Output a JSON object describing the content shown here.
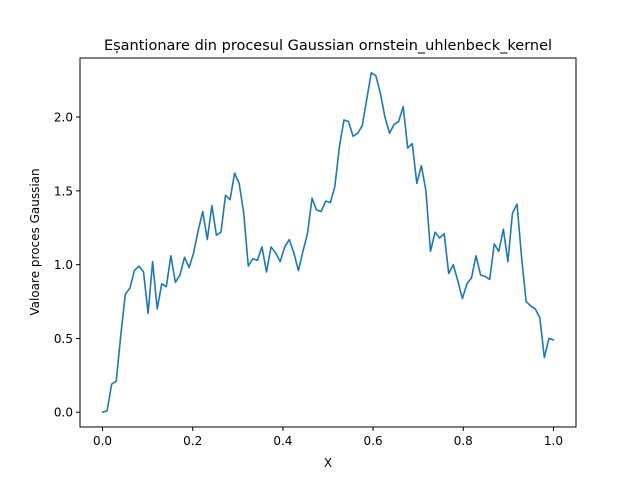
{
  "chart_data": {
    "type": "line",
    "title": "Eșantionare din procesul Gaussian ornstein_uhlenbeck_kernel",
    "xlabel": "X",
    "ylabel": "Valoare proces Gaussian",
    "xlim": [
      -0.05,
      1.05
    ],
    "ylim": [
      -0.1,
      2.4
    ],
    "xticks": [
      0.0,
      0.2,
      0.4,
      0.6,
      0.8,
      1.0
    ],
    "yticks": [
      0.0,
      0.5,
      1.0,
      1.5,
      2.0
    ],
    "xtick_labels": [
      "0.0",
      "0.2",
      "0.4",
      "0.6",
      "0.8",
      "1.0"
    ],
    "ytick_labels": [
      "0.0",
      "0.5",
      "1.0",
      "1.5",
      "2.0"
    ],
    "grid": false,
    "line_color": "#1f77b4",
    "series": [
      {
        "x": [
          0.0,
          0.0101,
          0.0202,
          0.0303,
          0.0404,
          0.0505,
          0.0606,
          0.0707,
          0.0808,
          0.0909,
          0.101,
          0.1111,
          0.1212,
          0.1313,
          0.1414,
          0.1515,
          0.1616,
          0.1717,
          0.1818,
          0.1919,
          0.202,
          0.2121,
          0.2222,
          0.2323,
          0.2424,
          0.2525,
          0.2626,
          0.2727,
          0.2828,
          0.2929,
          0.303,
          0.3131,
          0.3232,
          0.3333,
          0.3434,
          0.3535,
          0.3636,
          0.3737,
          0.3838,
          0.3939,
          0.404,
          0.4141,
          0.4242,
          0.4343,
          0.4444,
          0.4545,
          0.4646,
          0.4747,
          0.4848,
          0.4949,
          0.5051,
          0.5152,
          0.5253,
          0.5354,
          0.5455,
          0.5556,
          0.5657,
          0.5758,
          0.5859,
          0.596,
          0.6061,
          0.6162,
          0.6263,
          0.6364,
          0.6465,
          0.6566,
          0.6667,
          0.6768,
          0.6869,
          0.697,
          0.7071,
          0.7172,
          0.7273,
          0.7374,
          0.7475,
          0.7576,
          0.7677,
          0.7778,
          0.7879,
          0.798,
          0.8081,
          0.8182,
          0.8283,
          0.8384,
          0.8485,
          0.8586,
          0.8687,
          0.8788,
          0.8889,
          0.899,
          0.9091,
          0.9192,
          0.9293,
          0.9394,
          0.9495,
          0.9596,
          0.9697,
          0.9798,
          0.9899,
          1.0
        ],
        "values": [
          0.0,
          0.01,
          0.19,
          0.21,
          0.52,
          0.8,
          0.84,
          0.96,
          0.99,
          0.95,
          0.67,
          1.02,
          0.7,
          0.87,
          0.85,
          1.06,
          0.88,
          0.93,
          1.05,
          0.98,
          1.08,
          1.23,
          1.36,
          1.17,
          1.4,
          1.2,
          1.22,
          1.47,
          1.44,
          1.62,
          1.55,
          1.35,
          0.99,
          1.04,
          1.03,
          1.12,
          0.95,
          1.12,
          1.08,
          1.02,
          1.12,
          1.17,
          1.08,
          0.96,
          1.09,
          1.21,
          1.45,
          1.37,
          1.36,
          1.43,
          1.42,
          1.53,
          1.8,
          1.98,
          1.97,
          1.87,
          1.89,
          1.94,
          2.12,
          2.3,
          2.28,
          2.16,
          2.0,
          1.89,
          1.95,
          1.97,
          2.07,
          1.79,
          1.82,
          1.55,
          1.67,
          1.5,
          1.09,
          1.22,
          1.18,
          1.21,
          0.94,
          1.0,
          0.89,
          0.77,
          0.87,
          0.91,
          1.06,
          0.93,
          0.92,
          0.9,
          1.14,
          1.09,
          1.24,
          1.02,
          1.35,
          1.41,
          1.05,
          0.75,
          0.72,
          0.7,
          0.64,
          0.37,
          0.5,
          0.49
        ]
      }
    ]
  }
}
